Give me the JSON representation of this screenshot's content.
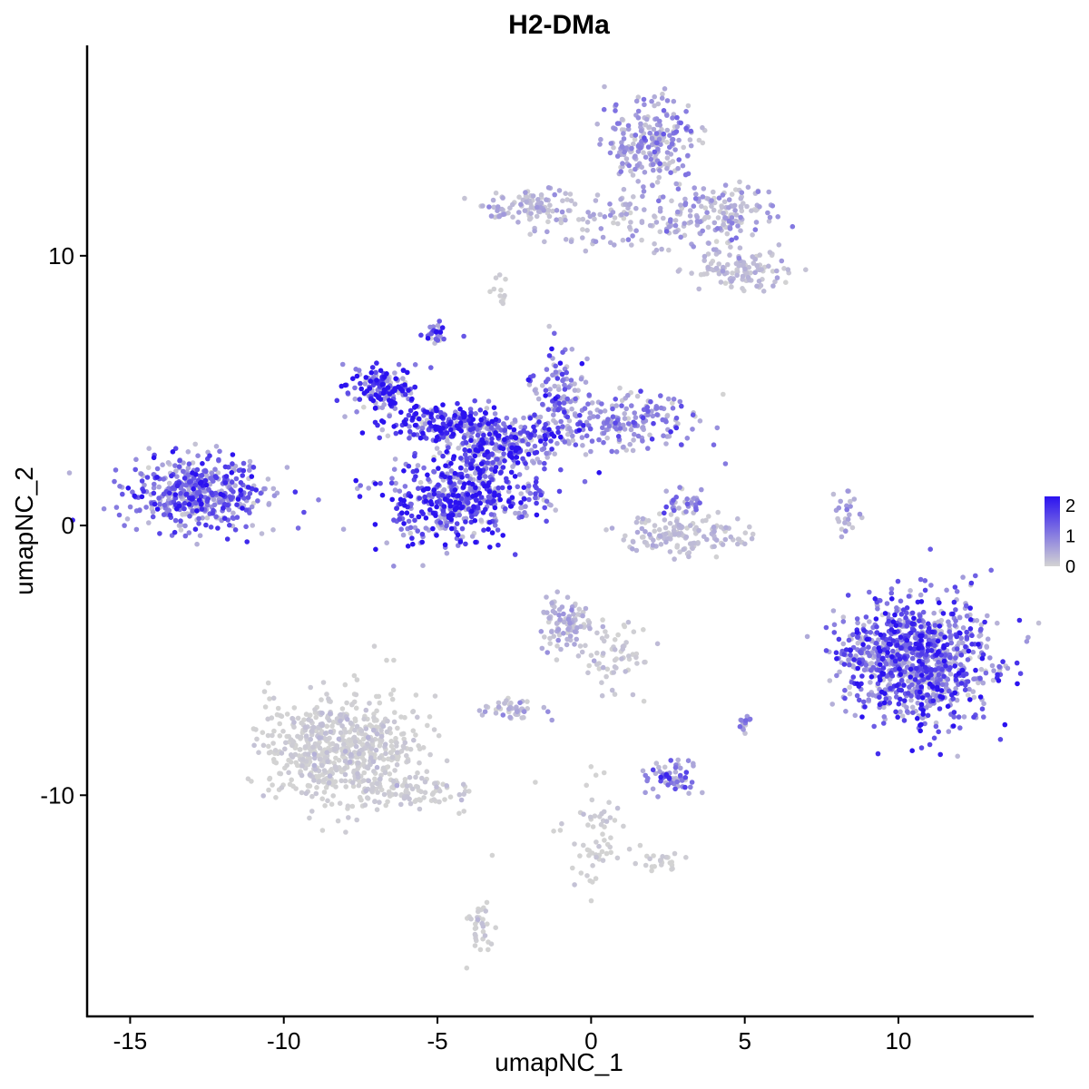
{
  "chart_data": {
    "type": "scatter",
    "title": "H2-DMa",
    "xlabel": "umapNC_1",
    "ylabel": "umapNC_2",
    "xlim": [
      -16.4,
      14.4
    ],
    "ylim": [
      -18.2,
      17.8
    ],
    "x_ticks": [
      -15,
      -10,
      -5,
      0,
      5,
      10
    ],
    "x_tick_labels": [
      "-15",
      "-10",
      "-5",
      "0",
      "5",
      "10"
    ],
    "y_ticks": [
      -10,
      0,
      10
    ],
    "y_tick_labels": [
      "-10",
      "0",
      "10"
    ],
    "grid": false,
    "legend": {
      "placement": "right",
      "type": "colorbar",
      "ticks": [
        0,
        1,
        2
      ],
      "tick_labels": [
        "0",
        "1",
        "2"
      ],
      "range": [
        0,
        2.3
      ],
      "low_color": "#d3d3d3",
      "high_color": "#2b12f0"
    },
    "clusters": [
      {
        "name": "",
        "center": [
          -12.8,
          1.2
        ],
        "spread": [
          1.2,
          0.65
        ],
        "count": 480,
        "expression": 1.3
      },
      {
        "name": "",
        "center": [
          -6.7,
          5.0
        ],
        "spread": [
          0.6,
          0.45
        ],
        "count": 160,
        "expression": 2.0
      },
      {
        "name": "",
        "center": [
          -4.8,
          3.8
        ],
        "spread": [
          0.9,
          0.35
        ],
        "count": 180,
        "expression": 1.9
      },
      {
        "name": "",
        "center": [
          -4.6,
          0.9
        ],
        "spread": [
          1.15,
          0.9
        ],
        "count": 420,
        "expression": 1.7
      },
      {
        "name": "",
        "center": [
          -3.6,
          2.2
        ],
        "spread": [
          0.55,
          0.8
        ],
        "count": 140,
        "expression": 1.9
      },
      {
        "name": "",
        "center": [
          -2.6,
          3.1
        ],
        "spread": [
          0.9,
          0.5
        ],
        "count": 200,
        "expression": 1.6
      },
      {
        "name": "",
        "center": [
          -1.0,
          4.8
        ],
        "spread": [
          0.5,
          0.9
        ],
        "count": 130,
        "expression": 1.3
      },
      {
        "name": "",
        "center": [
          1.3,
          3.8
        ],
        "spread": [
          1.2,
          0.5
        ],
        "count": 170,
        "expression": 0.9
      },
      {
        "name": "",
        "center": [
          -5.0,
          7.2
        ],
        "spread": [
          0.2,
          0.2
        ],
        "count": 30,
        "expression": 1.5
      },
      {
        "name": "",
        "center": [
          -2.0,
          1.0
        ],
        "spread": [
          0.5,
          0.35
        ],
        "count": 35,
        "expression": 1.3
      },
      {
        "name": "",
        "center": [
          1.9,
          14.2
        ],
        "spread": [
          0.7,
          0.9
        ],
        "count": 230,
        "expression": 0.7
      },
      {
        "name": "",
        "center": [
          -2.0,
          11.8
        ],
        "spread": [
          0.8,
          0.3
        ],
        "count": 90,
        "expression": 0.5
      },
      {
        "name": "",
        "center": [
          0.8,
          11.2
        ],
        "spread": [
          1.3,
          0.5
        ],
        "count": 90,
        "expression": 0.4
      },
      {
        "name": "",
        "center": [
          4.2,
          11.5
        ],
        "spread": [
          0.9,
          0.6
        ],
        "count": 160,
        "expression": 0.6
      },
      {
        "name": "",
        "center": [
          5.0,
          9.4
        ],
        "spread": [
          0.8,
          0.4
        ],
        "count": 110,
        "expression": 0.3
      },
      {
        "name": "",
        "center": [
          10.6,
          -5.0
        ],
        "spread": [
          1.2,
          1.15
        ],
        "count": 950,
        "expression": 1.4
      },
      {
        "name": "",
        "center": [
          8.7,
          -4.8
        ],
        "spread": [
          0.3,
          0.4
        ],
        "count": 40,
        "expression": 1.0
      },
      {
        "name": "",
        "center": [
          3.0,
          -0.4
        ],
        "spread": [
          1.0,
          0.35
        ],
        "count": 140,
        "expression": 0.3
      },
      {
        "name": "",
        "center": [
          3.0,
          0.8
        ],
        "spread": [
          0.3,
          0.3
        ],
        "count": 35,
        "expression": 1.0
      },
      {
        "name": "",
        "center": [
          -8.1,
          -8.3
        ],
        "spread": [
          1.2,
          1.0
        ],
        "count": 650,
        "expression": 0.05
      },
      {
        "name": "",
        "center": [
          -5.6,
          -9.9
        ],
        "spread": [
          1.0,
          0.3
        ],
        "count": 80,
        "expression": 0.02
      },
      {
        "name": "",
        "center": [
          -0.8,
          -3.7
        ],
        "spread": [
          0.45,
          0.5
        ],
        "count": 100,
        "expression": 0.4
      },
      {
        "name": "",
        "center": [
          0.8,
          -4.7
        ],
        "spread": [
          0.6,
          0.8
        ],
        "count": 60,
        "expression": 0.15
      },
      {
        "name": "",
        "center": [
          -2.5,
          -6.8
        ],
        "spread": [
          0.45,
          0.2
        ],
        "count": 45,
        "expression": 0.5
      },
      {
        "name": "",
        "center": [
          2.5,
          -9.3
        ],
        "spread": [
          0.35,
          0.35
        ],
        "count": 60,
        "expression": 1.1
      },
      {
        "name": "",
        "center": [
          0.2,
          -11.5
        ],
        "spread": [
          0.5,
          1.0
        ],
        "count": 60,
        "expression": 0.0
      },
      {
        "name": "",
        "center": [
          2.2,
          -12.5
        ],
        "spread": [
          0.35,
          0.2
        ],
        "count": 25,
        "expression": 0.0
      },
      {
        "name": "",
        "center": [
          -3.6,
          -14.8
        ],
        "spread": [
          0.2,
          0.6
        ],
        "count": 35,
        "expression": 0.1
      },
      {
        "name": "",
        "center": [
          5.0,
          -7.3
        ],
        "spread": [
          0.1,
          0.2
        ],
        "count": 15,
        "expression": 0.8
      },
      {
        "name": "",
        "center": [
          8.3,
          0.4
        ],
        "spread": [
          0.2,
          0.45
        ],
        "count": 25,
        "expression": 0.6
      },
      {
        "name": "",
        "center": [
          -3.0,
          8.6
        ],
        "spread": [
          0.15,
          0.3
        ],
        "count": 12,
        "expression": 0.1
      }
    ]
  }
}
